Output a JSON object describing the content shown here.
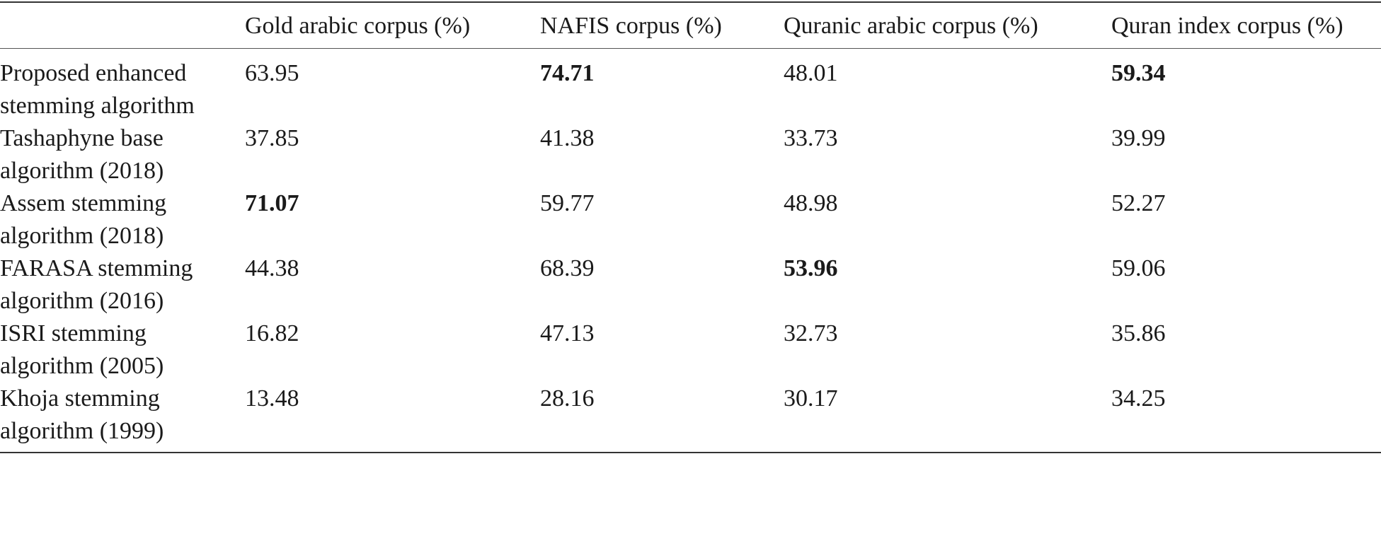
{
  "table": {
    "columns": [
      "",
      "Gold arabic corpus (%)",
      "NAFIS corpus (%)",
      "Quranic arabic corpus (%)",
      "Quran index corpus (%)"
    ],
    "rows": [
      {
        "label": "Proposed enhanced stemming algorithm",
        "values": [
          "63.95",
          "74.71",
          "48.01",
          "59.34"
        ],
        "bold": [
          false,
          true,
          false,
          true
        ]
      },
      {
        "label": "Tashaphyne base algorithm (2018)",
        "values": [
          "37.85",
          "41.38",
          "33.73",
          "39.99"
        ],
        "bold": [
          false,
          false,
          false,
          false
        ]
      },
      {
        "label": "Assem stemming algorithm (2018)",
        "values": [
          "71.07",
          "59.77",
          "48.98",
          "52.27"
        ],
        "bold": [
          true,
          false,
          false,
          false
        ]
      },
      {
        "label": "FARASA stemming algorithm (2016)",
        "values": [
          "44.38",
          "68.39",
          "53.96",
          "59.06"
        ],
        "bold": [
          false,
          false,
          true,
          false
        ]
      },
      {
        "label": "ISRI stemming algorithm (2005)",
        "values": [
          "16.82",
          "47.13",
          "32.73",
          "35.86"
        ],
        "bold": [
          false,
          false,
          false,
          false
        ]
      },
      {
        "label": "Khoja stemming algorithm (1999)",
        "values": [
          "13.48",
          "28.16",
          "30.17",
          "34.25"
        ],
        "bold": [
          false,
          false,
          false,
          false
        ]
      }
    ]
  }
}
